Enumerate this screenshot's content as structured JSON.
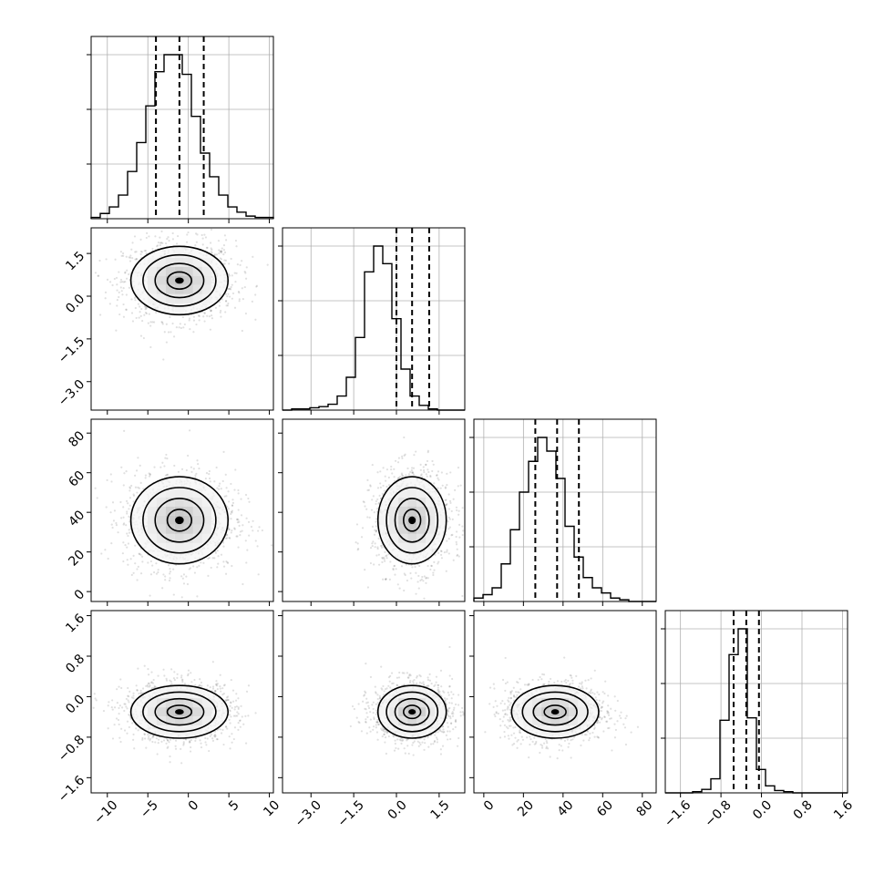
{
  "chart_data": {
    "type": "corner",
    "parameters": [
      {
        "range": [
          -12,
          10.5
        ],
        "ticks": [
          "−10",
          "−5",
          "0",
          "5",
          "10"
        ],
        "tick_values": [
          -10,
          -5,
          0,
          5,
          10
        ],
        "quantiles": [
          -4.0,
          -1.1,
          1.9
        ],
        "center": -1.1,
        "spread": 3.0
      },
      {
        "range": [
          -4.0,
          2.4
        ],
        "ticks": [
          "−3.0",
          "−1.5",
          "0.0",
          "1.5"
        ],
        "tick_values": [
          -3.0,
          -1.5,
          0.0,
          1.5
        ],
        "quantiles": [
          0.0,
          0.55,
          1.15
        ],
        "center": 0.55,
        "spread": 0.6
      },
      {
        "range": [
          -5,
          87
        ],
        "ticks": [
          "0",
          "20",
          "40",
          "60",
          "80"
        ],
        "tick_values": [
          0,
          20,
          40,
          60,
          80
        ],
        "quantiles": [
          26,
          37,
          48
        ],
        "center": 36,
        "spread": 11
      },
      {
        "range": [
          -1.9,
          1.7
        ],
        "ticks": [
          "−1.6",
          "−0.8",
          "0.0",
          "0.8",
          "1.6"
        ],
        "tick_values": [
          -1.6,
          -0.8,
          0.0,
          0.8,
          1.6
        ],
        "quantiles": [
          -0.55,
          -0.3,
          -0.05
        ],
        "center": -0.3,
        "spread": 0.26
      }
    ],
    "histograms": [
      {
        "bin_start": -12.0,
        "bin_width": 1.125,
        "counts": [
          1,
          4,
          9,
          18,
          36,
          58,
          86,
          112,
          125,
          125,
          110,
          78,
          50,
          32,
          18,
          9,
          5,
          2,
          1,
          1
        ]
      },
      {
        "bin_start": -4.0,
        "bin_width": 0.32,
        "counts": [
          0,
          1,
          1,
          2,
          3,
          5,
          12,
          28,
          62,
          118,
          140,
          125,
          78,
          35,
          12,
          4,
          1,
          0,
          0,
          0
        ]
      },
      {
        "bin_start": -5.0,
        "bin_width": 4.6,
        "counts": [
          2,
          4,
          8,
          22,
          42,
          64,
          82,
          96,
          88,
          72,
          44,
          26,
          14,
          8,
          5,
          2,
          1,
          0,
          0,
          0
        ]
      },
      {
        "bin_start": -1.9,
        "bin_width": 0.18,
        "counts": [
          0,
          0,
          0,
          1,
          3,
          12,
          62,
          118,
          140,
          64,
          20,
          6,
          2,
          1,
          0,
          0,
          0,
          0,
          0,
          0
        ]
      }
    ]
  }
}
